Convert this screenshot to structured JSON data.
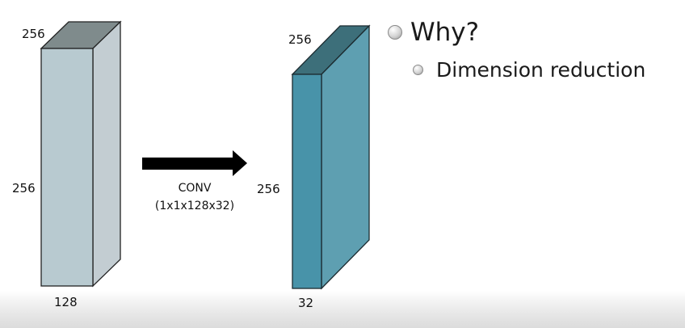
{
  "diagram": {
    "input_block": {
      "depth_label": "256",
      "height_label": "256",
      "width_label": "128",
      "front_color": "#b8cad0",
      "side_color": "#c3cdd2",
      "top_color": "#7f8b8c"
    },
    "operation": {
      "label": "CONV",
      "filter_label": "(1x1x128x32)",
      "arrow_color": "#000000"
    },
    "output_block": {
      "depth_label": "256",
      "height_label": "256",
      "width_label": "32",
      "front_color": "#4893a9",
      "side_color": "#5e9fb1",
      "top_color": "#3d6f7a"
    }
  },
  "bullets": {
    "heading": "Why?",
    "items": [
      "Dimension reduction"
    ]
  }
}
